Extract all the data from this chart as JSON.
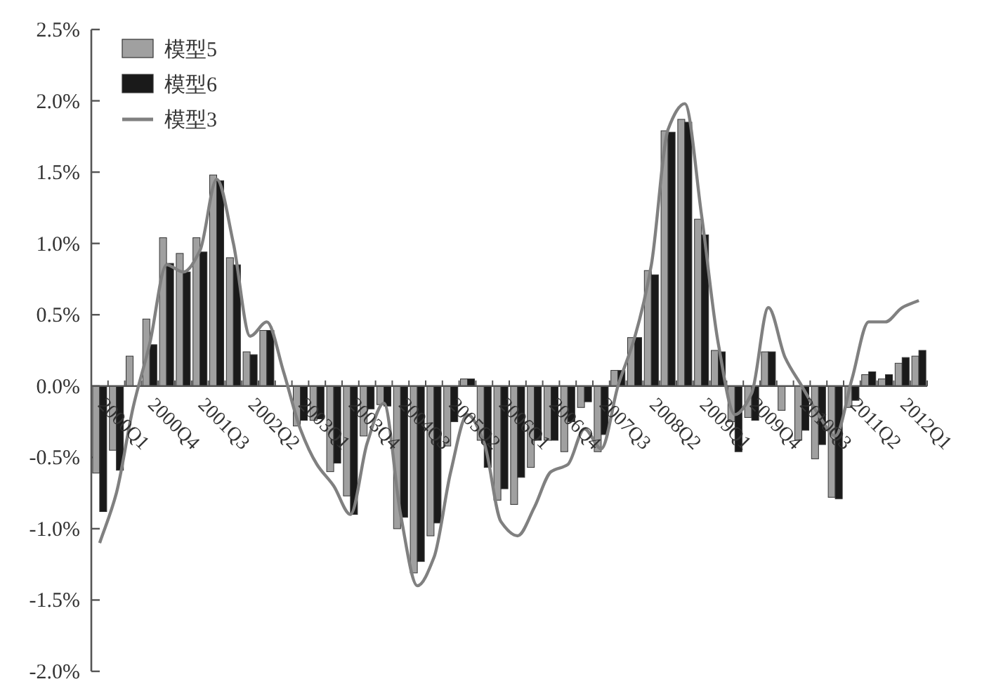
{
  "chart_data": {
    "type": "bar",
    "categories": [
      "2000Q1",
      null,
      null,
      "2000Q4",
      null,
      null,
      "2001Q3",
      null,
      null,
      "2002Q2",
      null,
      null,
      "2003Q1",
      null,
      null,
      "2003Q4",
      null,
      null,
      "2004Q3",
      null,
      null,
      "2005Q2",
      null,
      null,
      "2006Q1",
      null,
      null,
      "2006Q4",
      null,
      null,
      "2007Q3",
      null,
      null,
      "2008Q2",
      null,
      null,
      "2009Q1",
      null,
      null,
      "2009Q4",
      null,
      null,
      "2010Q3",
      null,
      null,
      "2011Q2",
      null,
      null,
      "2012Q1",
      null
    ],
    "series": [
      {
        "name": "模型5",
        "color": "#a0a0a0",
        "values": [
          -0.61,
          -0.45,
          0.21,
          0.47,
          1.04,
          0.93,
          1.04,
          1.48,
          0.9,
          0.24,
          0.39,
          0,
          -0.28,
          -0.24,
          -0.6,
          -0.77,
          -0.35,
          -0.13,
          -1.0,
          -1.31,
          -1.05,
          -0.42,
          0.05,
          -0.38,
          -0.8,
          -0.83,
          -0.57,
          -0.38,
          -0.46,
          -0.15,
          -0.46,
          0.11,
          0.34,
          0.81,
          1.79,
          1.87,
          1.17,
          0.25,
          -0.25,
          -0.22,
          0.24,
          -0.17,
          -0.38,
          -0.51,
          -0.78,
          -0.15,
          0.08,
          0.05,
          0.16,
          0.21
        ]
      },
      {
        "name": "模型6",
        "color": "#1a1a1a",
        "values": [
          -0.88,
          -0.59,
          0,
          0.29,
          0.86,
          0.8,
          0.94,
          1.44,
          0.85,
          0.22,
          0.39,
          0,
          -0.24,
          -0.23,
          -0.54,
          -0.9,
          -0.16,
          -0.14,
          -0.92,
          -1.23,
          -0.96,
          -0.25,
          0.05,
          -0.57,
          -0.72,
          -0.64,
          -0.38,
          -0.38,
          -0.25,
          -0.11,
          -0.34,
          0.11,
          0.34,
          0.78,
          1.78,
          1.85,
          1.06,
          0.24,
          -0.46,
          -0.24,
          0.24,
          0,
          -0.31,
          -0.41,
          -0.79,
          -0.1,
          0.1,
          0.08,
          0.2,
          0.25
        ]
      },
      {
        "name": "模型3",
        "type": "line",
        "color": "#808080",
        "values": [
          -1.1,
          -0.75,
          -0.15,
          0.3,
          0.85,
          0.8,
          0.95,
          1.45,
          1.0,
          0.35,
          0.45,
          0.1,
          -0.3,
          -0.55,
          -0.7,
          -0.9,
          -0.4,
          -0.12,
          -0.9,
          -1.4,
          -1.2,
          -0.6,
          -0.2,
          -0.4,
          -0.95,
          -1.05,
          -0.85,
          -0.6,
          -0.55,
          -0.3,
          -0.44,
          0.0,
          0.34,
          0.85,
          1.8,
          1.98,
          1.2,
          0.3,
          -0.2,
          -0.05,
          0.55,
          0.2,
          0.0,
          -0.2,
          -0.35,
          0.05,
          0.45,
          0.45,
          0.55,
          0.6
        ]
      }
    ],
    "ylim": [
      -2,
      2.5
    ],
    "yticks": [
      {
        "value": -2,
        "label": "-2.0%"
      },
      {
        "value": -1.5,
        "label": "-1.5%"
      },
      {
        "value": -1,
        "label": "-1.0%"
      },
      {
        "value": -0.5,
        "label": "-0.5%"
      },
      {
        "value": 0,
        "label": "0.0%"
      },
      {
        "value": 0.5,
        "label": "0.5%"
      },
      {
        "value": 1,
        "label": "1.0%"
      },
      {
        "value": 1.5,
        "label": "1.5%"
      },
      {
        "value": 2,
        "label": "2.0%"
      },
      {
        "value": 2.5,
        "label": "2.5%"
      }
    ],
    "legend": "top left"
  }
}
